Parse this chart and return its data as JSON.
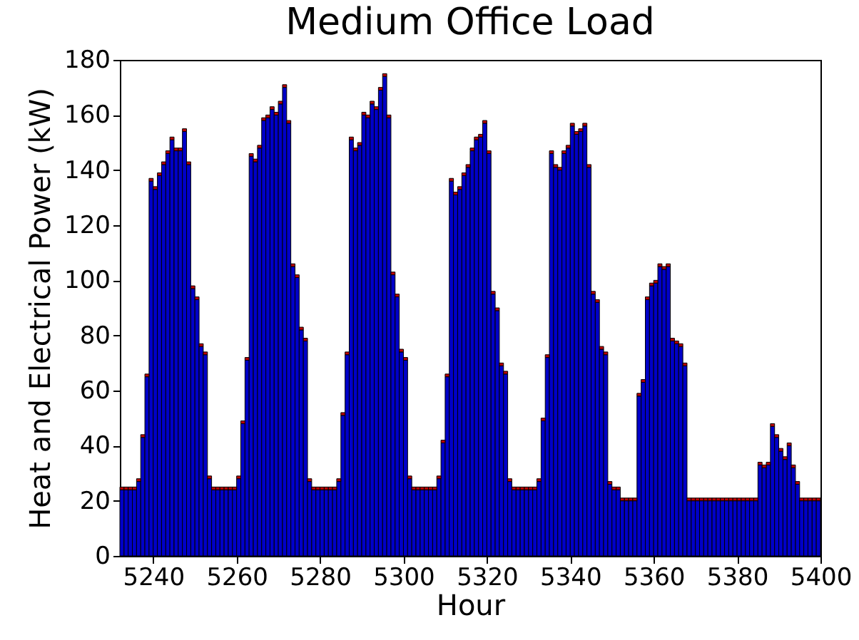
{
  "chart_data": {
    "type": "bar",
    "title": "Medium Office Load",
    "xlabel": "Hour",
    "ylabel": "Heat and Electrical Power (kW)",
    "stacked": true,
    "x": [
      5232,
      5233,
      5234,
      5235,
      5236,
      5237,
      5238,
      5239,
      5240,
      5241,
      5242,
      5243,
      5244,
      5245,
      5246,
      5247,
      5248,
      5249,
      5250,
      5251,
      5252,
      5253,
      5254,
      5255,
      5256,
      5257,
      5258,
      5259,
      5260,
      5261,
      5262,
      5263,
      5264,
      5265,
      5266,
      5267,
      5268,
      5269,
      5270,
      5271,
      5272,
      5273,
      5274,
      5275,
      5276,
      5277,
      5278,
      5279,
      5280,
      5281,
      5282,
      5283,
      5284,
      5285,
      5286,
      5287,
      5288,
      5289,
      5290,
      5291,
      5292,
      5293,
      5294,
      5295,
      5296,
      5297,
      5298,
      5299,
      5300,
      5301,
      5302,
      5303,
      5304,
      5305,
      5306,
      5307,
      5308,
      5309,
      5310,
      5311,
      5312,
      5313,
      5314,
      5315,
      5316,
      5317,
      5318,
      5319,
      5320,
      5321,
      5322,
      5323,
      5324,
      5325,
      5326,
      5327,
      5328,
      5329,
      5330,
      5331,
      5332,
      5333,
      5334,
      5335,
      5336,
      5337,
      5338,
      5339,
      5340,
      5341,
      5342,
      5343,
      5344,
      5345,
      5346,
      5347,
      5348,
      5349,
      5350,
      5351,
      5352,
      5353,
      5354,
      5355,
      5356,
      5357,
      5358,
      5359,
      5360,
      5361,
      5362,
      5363,
      5364,
      5365,
      5366,
      5367,
      5368,
      5369,
      5370,
      5371,
      5372,
      5373,
      5374,
      5375,
      5376,
      5377,
      5378,
      5379,
      5380,
      5381,
      5382,
      5383,
      5384,
      5385,
      5386,
      5387,
      5388,
      5389,
      5390,
      5391,
      5392,
      5393,
      5394,
      5395,
      5396,
      5397,
      5398,
      5399
    ],
    "series": [
      {
        "color": "#0000c8",
        "values": [
          24,
          24,
          24,
          24,
          27,
          43,
          65,
          136,
          133,
          138,
          142,
          146,
          151,
          147,
          147,
          154,
          142,
          97,
          93,
          76,
          73,
          28,
          24,
          24,
          24,
          24,
          24,
          24,
          28,
          48,
          71,
          145,
          143,
          148,
          158,
          159,
          162,
          160,
          164,
          170,
          157,
          105,
          101,
          82,
          78,
          27,
          24,
          24,
          24,
          24,
          24,
          24,
          27,
          51,
          73,
          151,
          147,
          149,
          160,
          159,
          164,
          162,
          169,
          174,
          159,
          102,
          94,
          74,
          71,
          28,
          24,
          24,
          24,
          24,
          24,
          24,
          28,
          41,
          65,
          136,
          131,
          133,
          138,
          141,
          147,
          151,
          152,
          157,
          146,
          95,
          89,
          69,
          66,
          27,
          24,
          24,
          24,
          24,
          24,
          24,
          27,
          49,
          72,
          146,
          141,
          140,
          146,
          148,
          156,
          153,
          154,
          156,
          141,
          95,
          92,
          75,
          73,
          26,
          24,
          24,
          20,
          20,
          20,
          20,
          58,
          63,
          93,
          98,
          99,
          105,
          104,
          105,
          78,
          77,
          76,
          69,
          20,
          20,
          20,
          20,
          20,
          20,
          20,
          20,
          20,
          20,
          20,
          20,
          20,
          20,
          20,
          20,
          20,
          33,
          32,
          33,
          47,
          43,
          38,
          35,
          40,
          32,
          26,
          20,
          20,
          20,
          20,
          20
        ]
      },
      {
        "color": "#c00000",
        "values": [
          1,
          1,
          1,
          1,
          1,
          1,
          1,
          1,
          1,
          1,
          1,
          1,
          1,
          1,
          1,
          1,
          1,
          1,
          1,
          1,
          1,
          1,
          1,
          1,
          1,
          1,
          1,
          1,
          1,
          1,
          1,
          1,
          1,
          1,
          1,
          1,
          1,
          1,
          1,
          1,
          1,
          1,
          1,
          1,
          1,
          1,
          1,
          1,
          1,
          1,
          1,
          1,
          1,
          1,
          1,
          1,
          1,
          1,
          1,
          1,
          1,
          1,
          1,
          1,
          1,
          1,
          1,
          1,
          1,
          1,
          1,
          1,
          1,
          1,
          1,
          1,
          1,
          1,
          1,
          1,
          1,
          1,
          1,
          1,
          1,
          1,
          1,
          1,
          1,
          1,
          1,
          1,
          1,
          1,
          1,
          1,
          1,
          1,
          1,
          1,
          1,
          1,
          1,
          1,
          1,
          1,
          1,
          1,
          1,
          1,
          1,
          1,
          1,
          1,
          1,
          1,
          1,
          1,
          1,
          1,
          1,
          1,
          1,
          1,
          1,
          1,
          1,
          1,
          1,
          1,
          1,
          1,
          1,
          1,
          1,
          1,
          1,
          1,
          1,
          1,
          1,
          1,
          1,
          1,
          1,
          1,
          1,
          1,
          1,
          1,
          1,
          1,
          1,
          1,
          1,
          1,
          1,
          1,
          1,
          1,
          1,
          1,
          1,
          1,
          1,
          1,
          1,
          1
        ]
      }
    ],
    "xlim": [
      5232,
      5400
    ],
    "xticks": [
      5240,
      5260,
      5280,
      5300,
      5320,
      5340,
      5360,
      5380,
      5400
    ],
    "ylim": [
      0,
      180
    ],
    "yticks": [
      0,
      20,
      40,
      60,
      80,
      100,
      120,
      140,
      160,
      180
    ]
  }
}
